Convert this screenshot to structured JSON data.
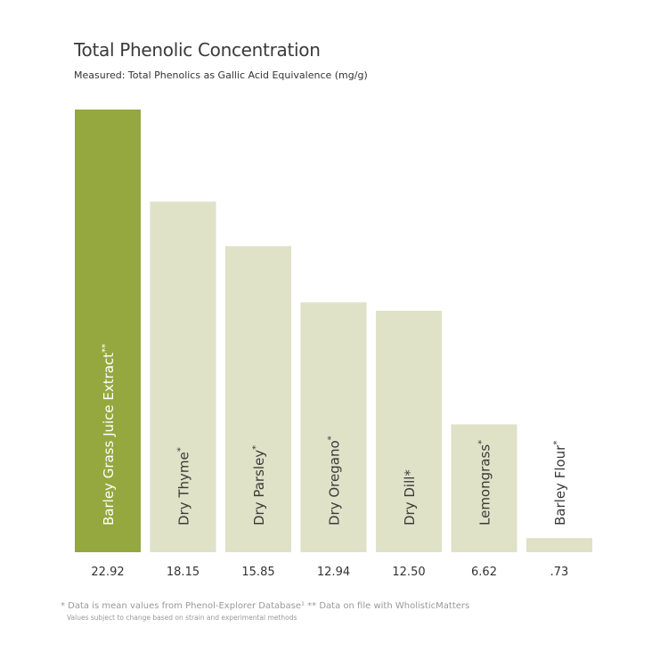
{
  "chart_data": {
    "type": "bar",
    "title": "Total Phenolic Concentration",
    "subtitle": "Measured: Total Phenolics as Gallic Acid Equivalence (mg/g)",
    "categories": [
      "Barley Grass Juice Extract",
      "Dry Thyme",
      "Dry Parsley",
      "Dry Oregano",
      "Dry Dill*",
      "Lemongrass",
      "Barley Flour"
    ],
    "category_marks": [
      "**",
      "*",
      "*",
      "*",
      "",
      "*",
      "*"
    ],
    "values": [
      22.92,
      18.15,
      15.85,
      12.94,
      12.5,
      6.62,
      0.73
    ],
    "value_labels": [
      "22.92",
      "18.15",
      "15.85",
      "12.94",
      "12.50",
      "6.62",
      ".73"
    ],
    "highlight_index": 0,
    "colors": {
      "highlight": "#94a83f",
      "default": "#dfe2c7",
      "highlight_text": "#ffffff",
      "default_text": "#3a3a3a"
    },
    "ylim": [
      0,
      22.92
    ],
    "grid": false,
    "legend": "none"
  },
  "footnotes": {
    "line1": "* Data is mean values from Phenol-Explorer Database¹   ** Data on file with WholisticMatters",
    "line2": "Values subject to change based on strain and experimental methods"
  }
}
